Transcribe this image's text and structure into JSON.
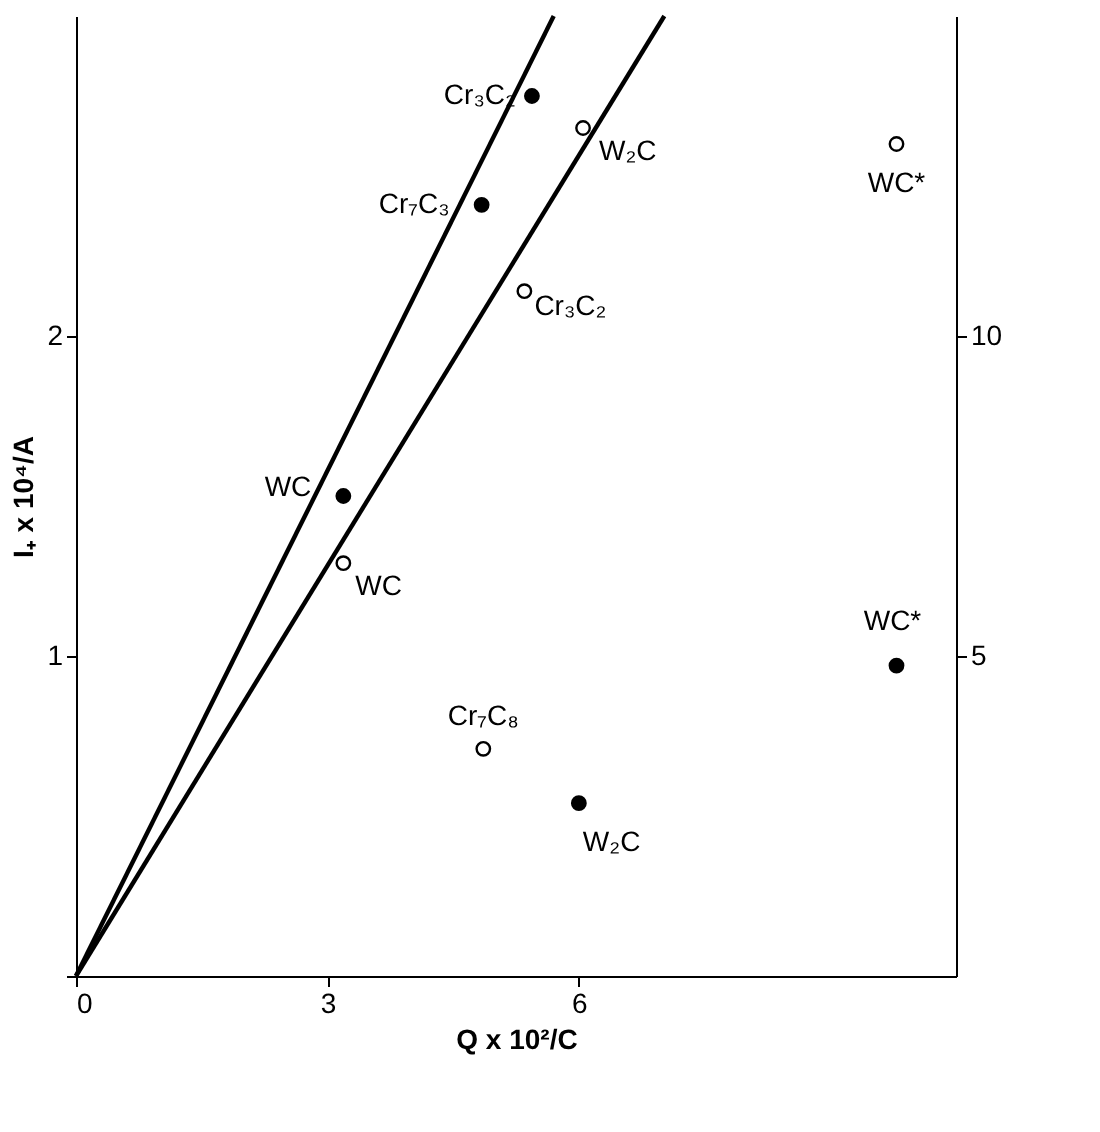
{
  "chart_data": {
    "type": "scatter",
    "xlabel": "Q x 10²/C",
    "ylabel": "I₊ x 10⁴/A",
    "xlim": [
      0,
      10.5
    ],
    "xticks": [
      0,
      3,
      6
    ],
    "ylim": [
      0,
      3.0
    ],
    "yticks": [
      {
        "value": 0,
        "label": null
      },
      1,
      2
    ],
    "y2lim": [
      0,
      15
    ],
    "y2ticks": [
      5,
      10
    ],
    "grid": false,
    "marker": "circle",
    "series": [
      {
        "color": "#000000",
        "x": [
          5.44,
          4.84,
          3.19,
          9.79,
          6.0
        ],
        "values": [
          2.75,
          2.41,
          1.5,
          0.97,
          0.54
        ]
      },
      {
        "color": "#ffffff",
        "x": [
          6.05,
          5.35,
          3.19,
          4.86,
          9.79
        ],
        "values": [
          2.65,
          2.14,
          1.29,
          0.71,
          2.6
        ]
      },
      {
        "type": "line",
        "marker": "none",
        "line_style": "solid",
        "color": "#000000",
        "x": [
          0,
          5.7
        ],
        "values": [
          0,
          3.0
        ]
      },
      {
        "type": "line",
        "marker": "none",
        "line_style": "solid",
        "color": "#000000",
        "x": [
          0,
          7.02
        ],
        "values": [
          0,
          3.0
        ]
      }
    ],
    "annotations": [
      {
        "text": "Cr₃C₂",
        "x": 5.44,
        "y": 2.75
      },
      {
        "text": "Cr₇C₃",
        "x": 4.84,
        "y": 2.41
      },
      {
        "text": "WC",
        "x": 3.19,
        "y": 1.5
      },
      {
        "text": "WC*",
        "x": 9.79,
        "y": 0.97
      },
      {
        "text": "W₂C",
        "x": 6.0,
        "y": 0.54
      },
      {
        "text": "W₂C",
        "x": 6.05,
        "y": 2.65
      },
      {
        "text": "Cr₃C₂",
        "x": 5.35,
        "y": 2.14
      },
      {
        "text": "WC",
        "x": 3.19,
        "y": 1.29
      },
      {
        "text": "Cr₇C₈",
        "x": 4.86,
        "y": 0.71
      },
      {
        "text": "WC*",
        "x": 9.79,
        "y": 2.6
      }
    ]
  }
}
